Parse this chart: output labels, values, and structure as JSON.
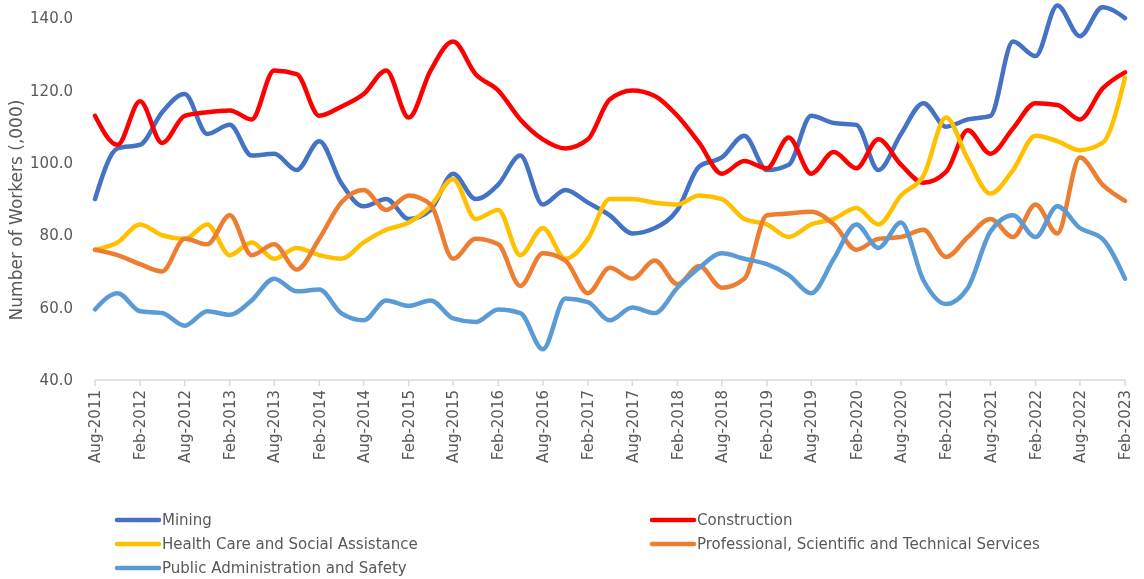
{
  "chart_data": {
    "type": "line",
    "ylabel": "Number of Workers (,000)",
    "legend": "bottom",
    "line_style": "solid",
    "x": [
      "2011-08",
      "2011-11",
      "2012-02",
      "2012-05",
      "2012-08",
      "2012-11",
      "2013-02",
      "2013-05",
      "2013-08",
      "2013-11",
      "2014-02",
      "2014-05",
      "2014-08",
      "2014-11",
      "2015-02",
      "2015-05",
      "2015-08",
      "2015-11",
      "2016-02",
      "2016-05",
      "2016-08",
      "2016-11",
      "2017-02",
      "2017-05",
      "2017-08",
      "2017-11",
      "2018-02",
      "2018-05",
      "2018-08",
      "2018-11",
      "2019-02",
      "2019-05",
      "2019-08",
      "2019-11",
      "2020-02",
      "2020-05",
      "2020-08",
      "2020-11",
      "2021-02",
      "2021-05",
      "2021-08",
      "2021-11",
      "2022-02",
      "2022-05",
      "2022-08",
      "2022-11",
      "2023-02"
    ],
    "xlim": [
      "2011-08",
      "2023-02"
    ],
    "xticks": [
      {
        "value": "2011-08",
        "label": "Aug-2011"
      },
      {
        "value": "2012-02",
        "label": "Feb-2012"
      },
      {
        "value": "2012-08",
        "label": "Aug-2012"
      },
      {
        "value": "2013-02",
        "label": "Feb-2013"
      },
      {
        "value": "2013-08",
        "label": "Aug-2013"
      },
      {
        "value": "2014-02",
        "label": "Feb-2014"
      },
      {
        "value": "2014-08",
        "label": "Aug-2014"
      },
      {
        "value": "2015-02",
        "label": "Feb-2015"
      },
      {
        "value": "2015-08",
        "label": "Aug-2015"
      },
      {
        "value": "2016-02",
        "label": "Feb-2016"
      },
      {
        "value": "2016-08",
        "label": "Aug-2016"
      },
      {
        "value": "2017-02",
        "label": "Feb-2017"
      },
      {
        "value": "2017-08",
        "label": "Aug-2017"
      },
      {
        "value": "2018-02",
        "label": "Feb-2018"
      },
      {
        "value": "2018-08",
        "label": "Aug-2018"
      },
      {
        "value": "2019-02",
        "label": "Feb-2019"
      },
      {
        "value": "2019-08",
        "label": "Aug-2019"
      },
      {
        "value": "2020-02",
        "label": "Feb-2020"
      },
      {
        "value": "2020-08",
        "label": "Aug-2020"
      },
      {
        "value": "2021-02",
        "label": "Feb-2021"
      },
      {
        "value": "2021-08",
        "label": "Aug-2021"
      },
      {
        "value": "2022-02",
        "label": "Feb-2022"
      },
      {
        "value": "2022-08",
        "label": "Aug-2022"
      },
      {
        "value": "2023-02",
        "label": "Feb-2023"
      }
    ],
    "ylim": [
      40,
      145
    ],
    "yticks": [
      {
        "value": 40,
        "label": "40.0"
      },
      {
        "value": 60,
        "label": "60.0"
      },
      {
        "value": 80,
        "label": "80.0"
      },
      {
        "value": 100,
        "label": "100.0"
      },
      {
        "value": 120,
        "label": "120.0"
      },
      {
        "value": 140,
        "label": "140.0"
      }
    ],
    "series": [
      {
        "name": "Mining",
        "color": "#4472c4",
        "values": [
          90,
          104,
          105,
          114,
          119,
          108,
          110.5,
          102,
          102.5,
          98,
          106,
          94.5,
          88,
          90,
          84.5,
          87,
          97,
          90,
          94,
          102,
          88.5,
          92.5,
          89,
          85.5,
          80.5,
          82,
          87,
          99,
          101.5,
          107.5,
          98,
          99.5,
          113,
          111,
          110.5,
          98,
          108,
          116.5,
          110,
          112,
          113,
          133.5,
          129.5,
          143.5,
          135,
          143,
          140
        ]
      },
      {
        "name": "Construction",
        "color": "#ff0000",
        "values": [
          113,
          105,
          117,
          105.5,
          113,
          114,
          114.5,
          112,
          125.5,
          124.5,
          113,
          115.5,
          119,
          125.5,
          112.5,
          125.5,
          133.5,
          124.5,
          120,
          112,
          106.5,
          104,
          106.5,
          117.5,
          120,
          118.5,
          113,
          105.5,
          97,
          100.5,
          98.5,
          107,
          97,
          103,
          98.5,
          106.5,
          99.5,
          94.5,
          97.5,
          109,
          102.5,
          109.5,
          116.5,
          116,
          112,
          120.5,
          125
        ]
      },
      {
        "name": "Health Care and Social Assistance",
        "color": "#ffc000",
        "values": [
          76,
          78,
          83,
          80,
          79,
          83,
          74.5,
          78,
          73.5,
          76.5,
          74.5,
          73.5,
          78,
          81.5,
          83.5,
          88,
          95.5,
          84.5,
          87,
          74.5,
          82,
          73.5,
          79,
          90,
          90,
          89,
          88.5,
          91,
          90,
          84.5,
          83,
          79.5,
          83,
          84.5,
          87.5,
          83,
          91,
          96.5,
          112.5,
          101,
          91.5,
          98,
          107.5,
          106,
          103.5,
          105.5,
          123.5
        ]
      },
      {
        "name": "Professional, Scientific and Technical Services",
        "color": "#ed7d31",
        "values": [
          76,
          74.5,
          72,
          70,
          79,
          77.5,
          85.5,
          74.5,
          77.5,
          70.5,
          79,
          89,
          92.5,
          87,
          91,
          88.5,
          73.5,
          79,
          77.5,
          66,
          75,
          73,
          64,
          71,
          68,
          73,
          66.5,
          71.5,
          65.5,
          68,
          85.5,
          86,
          86.5,
          83,
          76,
          79,
          79.5,
          81.5,
          74,
          79.5,
          84.5,
          79.5,
          88.5,
          80.5,
          101.5,
          94,
          89.5
        ]
      },
      {
        "name": "Public Administration and Safety",
        "color": "#5b9bd5",
        "values": [
          59.5,
          64,
          59,
          58.5,
          55,
          59,
          58,
          62,
          68,
          64.5,
          65,
          58.5,
          56.5,
          62,
          60.5,
          62,
          57,
          56,
          59.5,
          58.5,
          48.5,
          62.5,
          61.5,
          56.5,
          60,
          58.5,
          65.5,
          71,
          75,
          73.5,
          72,
          69,
          64,
          73.5,
          83,
          76.5,
          83.5,
          67.5,
          61,
          65.5,
          81,
          85.5,
          79.5,
          88,
          82,
          79,
          68
        ]
      }
    ]
  }
}
